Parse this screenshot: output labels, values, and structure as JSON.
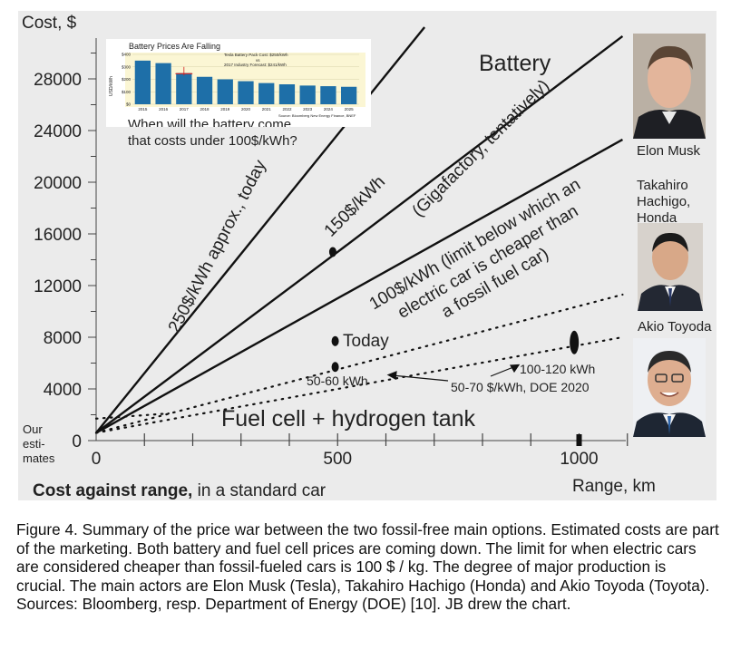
{
  "chart_data": {
    "type": "line",
    "ylabel": "Cost, $",
    "xlabel": "Range, km",
    "x_axis_note": "Our esti- mates",
    "footnote_bold": "Cost against range,",
    "footnote_rest": " in a standard car",
    "xlim": [
      0,
      1100
    ],
    "ylim": [
      0,
      32000
    ],
    "x_ticks": [
      0,
      500,
      1000
    ],
    "y_ticks": [
      0,
      4000,
      8000,
      12000,
      16000,
      20000,
      24000,
      28000
    ],
    "series": [
      {
        "style": "solid",
        "points": [
          [
            0,
            600
          ],
          [
            680,
            32000
          ]
        ],
        "label": "250$/kWh approx., today"
      },
      {
        "style": "solid",
        "points": [
          [
            0,
            600
          ],
          [
            500,
            14600
          ],
          [
            1090,
            31300
          ]
        ],
        "label": "150$/kWh"
      },
      {
        "style": "solid",
        "points": [
          [
            0,
            600
          ],
          [
            1090,
            23300
          ]
        ],
        "label": "100$/kWh (limit below which an electric car is cheaper than a fossil fuel car)"
      },
      {
        "style": "dotted",
        "points": [
          [
            0,
            600
          ],
          [
            1090,
            11300
          ]
        ],
        "label": ""
      },
      {
        "style": "dotted",
        "points": [
          [
            0,
            600
          ],
          [
            1090,
            8000
          ]
        ],
        "label": ""
      },
      {
        "style": "dotted",
        "points": [
          [
            0,
            1700
          ],
          [
            150,
            2100
          ]
        ],
        "label": ""
      }
    ],
    "markers": [
      {
        "x": 490,
        "y": 14600,
        "shape": "dot"
      },
      {
        "x": 495,
        "y": 7700,
        "shape": "dot"
      },
      {
        "x": 495,
        "y": 5700,
        "shape": "dot"
      },
      {
        "x": 990,
        "y": 7600,
        "shape": "ellipse"
      },
      {
        "x": 1000,
        "y": 0,
        "shape": "tick"
      }
    ],
    "annotations": {
      "battery": "Battery",
      "gigafactory": "(Gigafactory, tentatively)",
      "today": "Today",
      "kwh_50_60": "50-60 kWh",
      "kwh_100_120": "100-120 kWh",
      "doe": "50-70 $/kWh, DOE 2020",
      "fuel_cell": "Fuel cell + hydrogen tank"
    },
    "inset": {
      "type": "bar",
      "title": "Battery Prices Are Falling",
      "ylabel": "USD/kWh",
      "y_ticks": [
        0,
        100,
        200,
        300,
        400
      ],
      "y_tick_labels": [
        "$0",
        "$100",
        "$200",
        "$300",
        "$400"
      ],
      "categories": [
        "2015",
        "2016",
        "2017",
        "2018",
        "2019",
        "2020",
        "2021",
        "2022",
        "2023",
        "2024",
        "2025"
      ],
      "values": [
        350,
        330,
        250,
        220,
        200,
        185,
        170,
        160,
        150,
        145,
        140
      ],
      "legend_1": "Tesla Battery Pack Cost: $250/kWh",
      "legend_2": "vs",
      "legend_3": "2017 Industry Forecast: $241/kWh",
      "source": "Source: Bloomberg New Energy Finance, BNEF",
      "question_1": "When will the battery come",
      "question_2": "that costs under 100$/kWh?"
    }
  },
  "people": [
    {
      "name": "Elon Musk",
      "icon": "elon-musk-portrait"
    },
    {
      "name": "Takahiro Hachigo, Honda",
      "name_lines": [
        "Takahiro",
        "Hachigo,",
        "Honda"
      ],
      "icon": "takahiro-hachigo-portrait"
    },
    {
      "name": "Akio Toyoda",
      "icon": "akio-toyoda-portrait"
    }
  ],
  "caption": "Figure 4. Summary of the price war between the two fossil-free main options. Estimated costs are part of the marketing. Both battery and fuel cell prices are coming down. The limit for when electric cars are considered cheaper than fossil-fueled cars is 100 $ / kg. The degree of major production is crucial. The main actors are Elon Musk (Tesla), Takahiro Hachigo (Honda) and Akio Toyoda (Toyota). Sources: Bloomberg, resp. Department of Energy (DOE) [10]. JB drew the chart.",
  "colors": {
    "panel": "#ebebeb",
    "inset_bar": "#1e6fa8",
    "inset_bg": "#fbf6d4",
    "line": "#111111"
  }
}
